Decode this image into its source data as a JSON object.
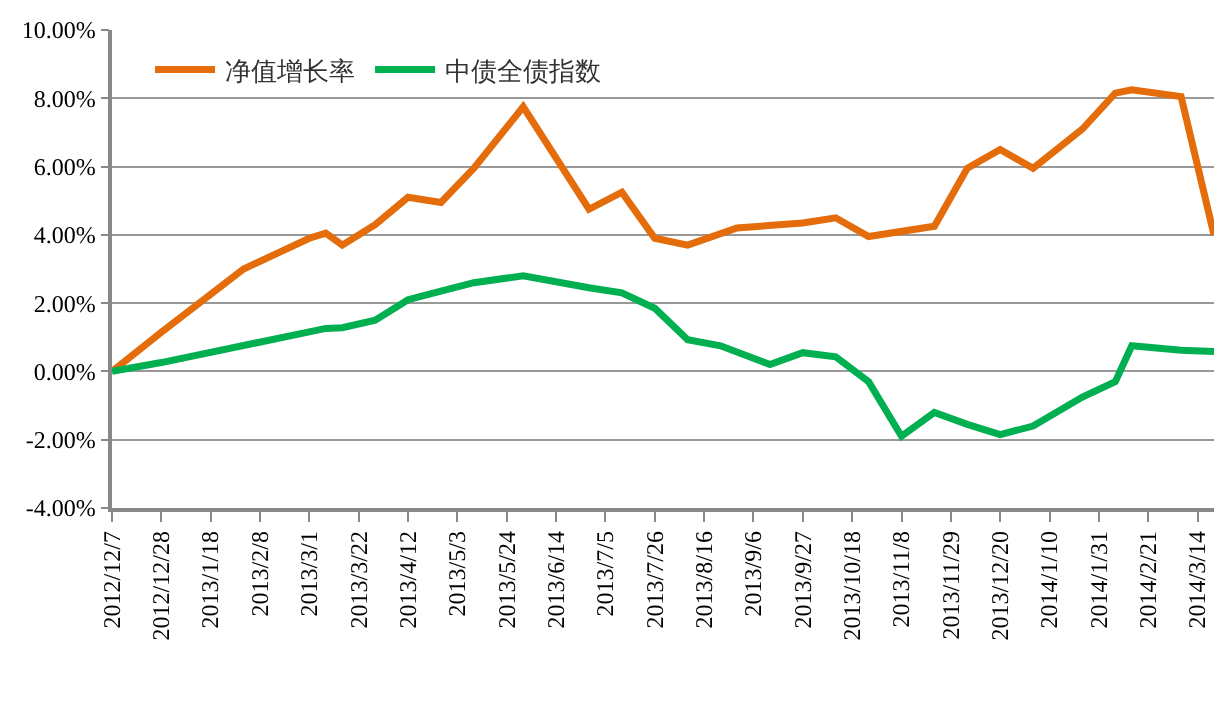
{
  "chart_data": {
    "type": "line",
    "grid": "y",
    "legend": "top left",
    "marker": "none",
    "line_style": "solid",
    "ylim": [
      -4,
      10
    ],
    "yticks": [
      {
        "value": -4,
        "label": "-4.00%"
      },
      {
        "value": -2,
        "label": "-2.00%"
      },
      {
        "value": 0,
        "label": "0.00%"
      },
      {
        "value": 2,
        "label": "2.00%"
      },
      {
        "value": 4,
        "label": "4.00%"
      },
      {
        "value": 6,
        "label": "6.00%"
      },
      {
        "value": 8,
        "label": "8.00%"
      },
      {
        "value": 10,
        "label": "10.00%"
      }
    ],
    "xlim": [
      "2012-12-07",
      "2014-03-21"
    ],
    "xticks": [
      {
        "value": "2012-12-07",
        "label": "2012/12/7"
      },
      {
        "value": "2012-12-28",
        "label": "2012/12/28"
      },
      {
        "value": "2013-01-18",
        "label": "2013/1/18"
      },
      {
        "value": "2013-02-08",
        "label": "2013/2/8"
      },
      {
        "value": "2013-03-01",
        "label": "2013/3/1"
      },
      {
        "value": "2013-03-22",
        "label": "2013/3/22"
      },
      {
        "value": "2013-04-12",
        "label": "2013/4/12"
      },
      {
        "value": "2013-05-03",
        "label": "2013/5/3"
      },
      {
        "value": "2013-05-24",
        "label": "2013/5/24"
      },
      {
        "value": "2013-06-14",
        "label": "2013/6/14"
      },
      {
        "value": "2013-07-05",
        "label": "2013/7/5"
      },
      {
        "value": "2013-07-26",
        "label": "2013/7/26"
      },
      {
        "value": "2013-08-16",
        "label": "2013/8/16"
      },
      {
        "value": "2013-09-06",
        "label": "2013/9/6"
      },
      {
        "value": "2013-09-27",
        "label": "2013/9/27"
      },
      {
        "value": "2013-10-18",
        "label": "2013/10/18"
      },
      {
        "value": "2013-11-08",
        "label": "2013/11/8"
      },
      {
        "value": "2013-11-29",
        "label": "2013/11/29"
      },
      {
        "value": "2013-12-20",
        "label": "2013/12/20"
      },
      {
        "value": "2014-01-10",
        "label": "2014/1/10"
      },
      {
        "value": "2014-01-31",
        "label": "2014/1/31"
      },
      {
        "value": "2014-02-21",
        "label": "2014/2/21"
      },
      {
        "value": "2014-03-14",
        "label": "2014/3/14"
      }
    ],
    "series": [
      {
        "name": "净值增长率",
        "color": "#e46c0a",
        "x": [
          "2012-12-07",
          "2012-12-28",
          "2013-02-01",
          "2013-03-01",
          "2013-03-08",
          "2013-03-15",
          "2013-03-29",
          "2013-04-12",
          "2013-04-26",
          "2013-05-10",
          "2013-05-31",
          "2013-06-28",
          "2013-07-12",
          "2013-07-26",
          "2013-08-09",
          "2013-08-30",
          "2013-09-27",
          "2013-10-11",
          "2013-10-25",
          "2013-11-22",
          "2013-12-06",
          "2013-12-20",
          "2014-01-03",
          "2014-01-24",
          "2014-02-07",
          "2014-02-14",
          "2014-03-07",
          "2014-03-21"
        ],
        "values": [
          0,
          1.15,
          3.0,
          3.9,
          4.05,
          3.7,
          4.3,
          5.1,
          4.95,
          5.95,
          7.75,
          4.75,
          5.25,
          3.9,
          3.7,
          4.2,
          4.35,
          4.5,
          3.95,
          4.25,
          5.95,
          6.5,
          5.95,
          7.1,
          8.15,
          8.25,
          8.05,
          4.0
        ]
      },
      {
        "name": "中债全债指数",
        "color": "#00b050",
        "x": [
          "2012-12-07",
          "2012-12-28",
          "2013-03-08",
          "2013-03-15",
          "2013-03-29",
          "2013-04-12",
          "2013-04-26",
          "2013-05-10",
          "2013-05-31",
          "2013-06-28",
          "2013-07-12",
          "2013-07-26",
          "2013-08-09",
          "2013-08-23",
          "2013-09-13",
          "2013-09-27",
          "2013-10-11",
          "2013-10-25",
          "2013-11-08",
          "2013-11-22",
          "2013-12-06",
          "2013-12-20",
          "2014-01-03",
          "2014-01-24",
          "2014-02-07",
          "2014-02-14",
          "2014-03-07",
          "2014-03-21"
        ],
        "values": [
          0,
          0.26,
          1.26,
          1.28,
          1.5,
          2.1,
          2.35,
          2.6,
          2.8,
          2.45,
          2.3,
          1.85,
          0.93,
          0.75,
          0.2,
          0.55,
          0.43,
          -0.3,
          -1.9,
          -1.2,
          -1.55,
          -1.85,
          -1.6,
          -0.75,
          -0.3,
          0.75,
          0.62,
          0.58
        ]
      }
    ]
  }
}
